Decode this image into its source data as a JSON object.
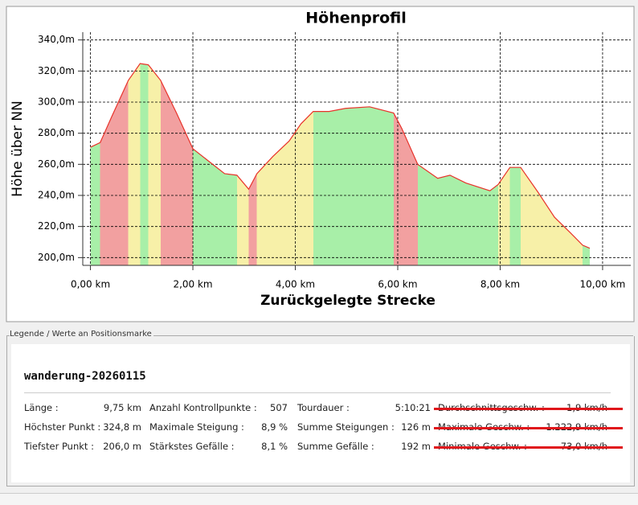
{
  "chart_data": {
    "type": "area",
    "title": "Höhenprofil",
    "x_label": "Zurückgelegte Strecke",
    "y_label": "Höhe über NN",
    "x": [
      0,
      0.19,
      0.42,
      0.74,
      0.97,
      1.13,
      1.37,
      1.68,
      2.0,
      2.31,
      2.62,
      2.86,
      3.09,
      3.25,
      3.56,
      3.88,
      4.11,
      4.35,
      4.66,
      4.98,
      5.45,
      5.92,
      6.08,
      6.39,
      6.78,
      7.02,
      7.33,
      7.8,
      7.96,
      8.19,
      8.4,
      8.74,
      9.06,
      9.37,
      9.61,
      9.75
    ],
    "values": [
      271,
      274,
      291,
      314,
      324.8,
      324,
      314,
      293,
      270,
      262,
      254,
      253,
      244,
      254,
      265,
      275,
      286,
      294,
      294,
      296,
      297,
      293,
      283,
      260,
      251,
      253,
      248,
      243,
      247,
      258,
      258,
      242,
      226,
      216,
      208,
      206
    ],
    "color": "#e8322a",
    "grid": true,
    "xlim": [
      -0.15,
      10.55
    ],
    "ylim": [
      195,
      345
    ],
    "xticks": [
      {
        "value": 0,
        "label": "0,00 km"
      },
      {
        "value": 2,
        "label": "2,00 km"
      },
      {
        "value": 4,
        "label": "4,00 km"
      },
      {
        "value": 6,
        "label": "6,00 km"
      },
      {
        "value": 8,
        "label": "8,00 km"
      },
      {
        "value": 10,
        "label": "10,00 km"
      }
    ],
    "yticks": [
      {
        "value": 200,
        "label": "200,0m"
      },
      {
        "value": 220,
        "label": "220,0m"
      },
      {
        "value": 240,
        "label": "240,0m"
      },
      {
        "value": 260,
        "label": "260,0m"
      },
      {
        "value": 280,
        "label": "280,0m"
      },
      {
        "value": 300,
        "label": "300,0m"
      },
      {
        "value": 320,
        "label": "320,0m"
      },
      {
        "value": 340,
        "label": "340,0m"
      }
    ]
  },
  "legend": {
    "title": "Legende / Werte an Positionsmarke",
    "track_name": "wanderung-20260115",
    "rows": [
      [
        {
          "label": "Länge :",
          "value": "9,75 km"
        },
        {
          "label": "Anzahl Kontrollpunkte :",
          "value": "507"
        },
        {
          "label": "Tourdauer :",
          "value": "5:10:21"
        },
        {
          "label": "Durchschnittsgeschw. :",
          "value": "1,9 km/h",
          "struck": true
        }
      ],
      [
        {
          "label": "Höchster Punkt :",
          "value": "324,8 m"
        },
        {
          "label": "Maximale Steigung :",
          "value": "8,9 %"
        },
        {
          "label": "Summe Steigungen :",
          "value": "126 m"
        },
        {
          "label": "Maximale Geschw. :",
          "value": "1.222,9 km/h",
          "struck": true
        }
      ],
      [
        {
          "label": "Tiefster Punkt :",
          "value": "206,0 m"
        },
        {
          "label": "Stärkstes Gefälle :",
          "value": "8,1 %"
        },
        {
          "label": "Summe Gefälle :",
          "value": "192 m"
        },
        {
          "label": "Minimale Geschw. :",
          "value": "73,0 km/h",
          "struck": true
        }
      ]
    ]
  }
}
